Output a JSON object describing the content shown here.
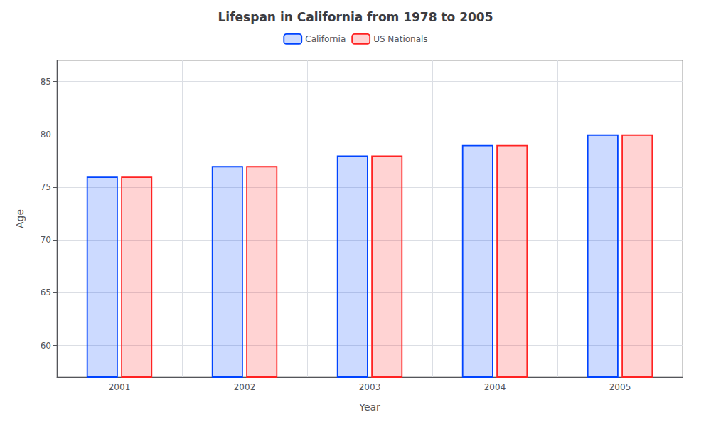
{
  "chart_data": {
    "type": "bar",
    "title": "Lifespan in California from 1978 to 2005",
    "x_label": "Year",
    "y_label": "Age",
    "categories": [
      "2001",
      "2002",
      "2003",
      "2004",
      "2005"
    ],
    "series": [
      {
        "name": "California",
        "color": "#0044ff",
        "values": [
          76,
          77,
          78,
          79,
          80
        ]
      },
      {
        "name": "US Nationals",
        "color": "#ff2222",
        "values": [
          76,
          77,
          78,
          79,
          80
        ]
      }
    ],
    "ylim": [
      57,
      87
    ],
    "yticks": [
      60,
      65,
      70,
      75,
      80,
      85
    ],
    "grid": true,
    "legend": "top"
  }
}
